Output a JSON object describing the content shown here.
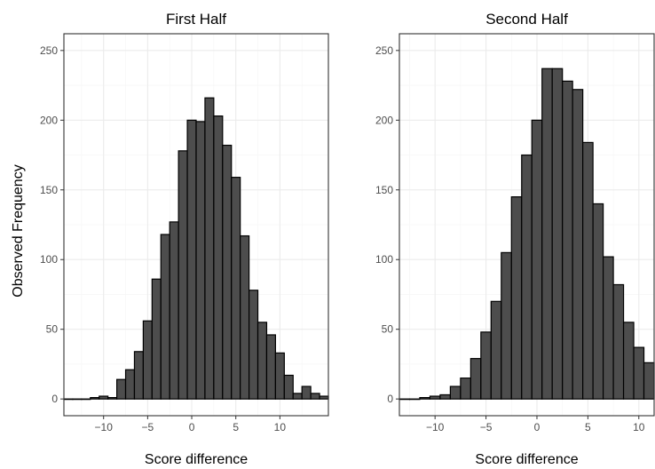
{
  "ylabel": "Observed Frequency",
  "chart_data": [
    {
      "type": "bar",
      "title": "First Half",
      "xlabel": "Score difference",
      "ylabel": "Observed Frequency",
      "xlim": [
        -14.5,
        15.5
      ],
      "ylim": [
        -12,
        262
      ],
      "xticks": [
        -10,
        -5,
        0,
        5,
        10
      ],
      "yticks": [
        0,
        50,
        100,
        150,
        200,
        250
      ],
      "grid": true,
      "x": [
        -14,
        -13,
        -12,
        -11,
        -10,
        -9,
        -8,
        -7,
        -6,
        -5,
        -4,
        -3,
        -2,
        -1,
        0,
        1,
        2,
        3,
        4,
        5,
        6,
        7,
        8,
        9,
        10,
        11,
        12,
        13,
        14,
        15
      ],
      "values": [
        0,
        0,
        0,
        1,
        2,
        1,
        14,
        21,
        34,
        56,
        86,
        118,
        127,
        178,
        200,
        199,
        216,
        203,
        182,
        159,
        117,
        78,
        55,
        46,
        33,
        17,
        4,
        9,
        4,
        2
      ]
    },
    {
      "type": "bar",
      "title": "Second Half",
      "xlabel": "Score difference",
      "xlim": [
        -13.5,
        11.5
      ],
      "ylim": [
        -12,
        262
      ],
      "xticks": [
        -10,
        -5,
        0,
        5,
        10
      ],
      "yticks": [
        0,
        50,
        100,
        150,
        200,
        250
      ],
      "grid": true,
      "x": [
        -13,
        -12,
        -11,
        -10,
        -9,
        -8,
        -7,
        -6,
        -5,
        -4,
        -3,
        -2,
        -1,
        0,
        1,
        2,
        3,
        4,
        5,
        6,
        7,
        8,
        9,
        10,
        11
      ],
      "values": [
        0,
        0,
        1,
        2,
        3,
        9,
        15,
        29,
        48,
        70,
        105,
        145,
        175,
        200,
        237,
        237,
        228,
        222,
        184,
        140,
        102,
        82,
        55,
        37,
        26
      ]
    }
  ]
}
